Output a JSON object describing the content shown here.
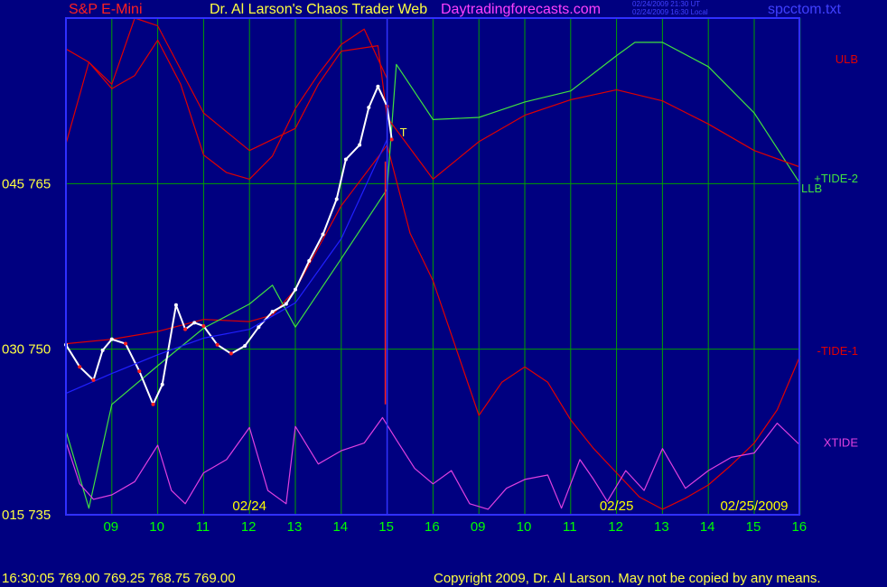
{
  "header": {
    "symbol": "S&P E-Mini",
    "title": "Dr. Al Larson's Chaos Trader Web",
    "site": "Daytradingforecasts.com",
    "ut_time": "02/24/2009 21:30 UT",
    "local_time": "02/24/2009 16:30 Local",
    "file": "spcctom.txt"
  },
  "footer": {
    "quote": "16:30:05  769.00 769.25 768.75 769.00",
    "copyright": "Copyright 2009, Dr. Al Larson. May not be copied by any means."
  },
  "colors": {
    "background": "#000080",
    "grid": "#00a000",
    "frame": "#3030ff",
    "price": "#ffffff",
    "price_down": "#ff2020",
    "ulb_llb": "#e00000",
    "tide2": "#40e040",
    "tide1": "#e00000",
    "xtide": "#e040e0",
    "blue_avg": "#2020ff",
    "now_line": "#ff2020",
    "hour_label": "#00ff00",
    "date_label": "#ffff00"
  },
  "chart_data": {
    "type": "line",
    "y_axis_labels": [
      {
        "text": "045  765",
        "value": 765
      },
      {
        "text": "030  750",
        "value": 750
      },
      {
        "text": "015  735",
        "value": 735
      }
    ],
    "ylim": [
      735,
      780
    ],
    "hour_ticks": [
      "09",
      "10",
      "11",
      "12",
      "13",
      "14",
      "15",
      "16",
      "09",
      "10",
      "11",
      "12",
      "13",
      "14",
      "15",
      "16"
    ],
    "date_labels": [
      {
        "text": "02/24",
        "hour_index": 4
      },
      {
        "text": "02/25",
        "hour_index": 12
      },
      {
        "text": "02/25/2009",
        "hour_index": 15
      }
    ],
    "now_hour_index": 7,
    "marker_label": "T",
    "series": [
      {
        "name": "ULB",
        "color_key": "ulb_llb",
        "points": [
          [
            0,
            777.2
          ],
          [
            0.5,
            776.0
          ],
          [
            1,
            773.6
          ],
          [
            1.5,
            774.8
          ],
          [
            2,
            778.0
          ],
          [
            2.5,
            774.0
          ],
          [
            3,
            767.6
          ],
          [
            3.5,
            766.0
          ],
          [
            4,
            765.4
          ],
          [
            4.5,
            767.5
          ],
          [
            5,
            771.8
          ],
          [
            5.5,
            774.9
          ],
          [
            6,
            777.6
          ],
          [
            6.5,
            779.0
          ],
          [
            7,
            774.5
          ]
        ]
      },
      {
        "name": "LLB",
        "color_key": "ulb_llb",
        "points": [
          [
            0,
            750.5
          ],
          [
            1,
            750.9
          ],
          [
            2,
            751.6
          ],
          [
            3,
            752.7
          ],
          [
            4,
            752.5
          ],
          [
            4.5,
            753.1
          ],
          [
            5,
            755.4
          ],
          [
            6,
            763.0
          ],
          [
            7,
            768.5
          ],
          [
            7.5,
            760.5
          ],
          [
            8,
            756.2
          ],
          [
            9,
            744.0
          ],
          [
            9.5,
            747.0
          ],
          [
            10,
            748.4
          ],
          [
            10.5,
            747.0
          ],
          [
            11,
            743.6
          ],
          [
            11.5,
            741.0
          ],
          [
            12,
            738.8
          ],
          [
            12.5,
            736.6
          ],
          [
            13,
            735.5
          ],
          [
            13.5,
            736.5
          ],
          [
            14,
            737.7
          ],
          [
            14.5,
            739.5
          ],
          [
            15,
            741.5
          ],
          [
            15.5,
            744.5
          ],
          [
            16,
            749.4
          ]
        ]
      },
      {
        "name": "+TIDE-2",
        "color_key": "tide2",
        "points": [
          [
            0,
            742.6
          ],
          [
            0.5,
            735.6
          ],
          [
            1,
            745.0
          ],
          [
            2,
            748.5
          ],
          [
            3,
            751.9
          ],
          [
            4,
            754.1
          ],
          [
            4.5,
            755.8
          ],
          [
            5,
            752.0
          ],
          [
            6,
            758.2
          ],
          [
            7,
            764.5
          ],
          [
            7.2,
            775.8
          ],
          [
            8,
            770.8
          ],
          [
            9,
            771.0
          ],
          [
            10,
            772.4
          ],
          [
            11,
            773.4
          ],
          [
            12,
            776.6
          ],
          [
            12.4,
            777.8
          ],
          [
            13,
            777.8
          ],
          [
            14,
            775.6
          ],
          [
            15,
            771.4
          ],
          [
            16,
            765.0
          ]
        ]
      },
      {
        "name": "-TIDE-1",
        "color_key": "tide1",
        "points": [
          [
            0,
            768.6
          ],
          [
            0.5,
            776.0
          ],
          [
            1,
            774.0
          ],
          [
            1.5,
            780.0
          ],
          [
            2,
            779.3
          ],
          [
            3,
            771.4
          ],
          [
            4,
            768.0
          ],
          [
            5,
            770.0
          ],
          [
            5.5,
            774.0
          ],
          [
            6,
            777.0
          ],
          [
            6.8,
            777.5
          ],
          [
            7,
            771.0
          ],
          [
            8,
            765.4
          ],
          [
            9,
            768.8
          ],
          [
            10,
            771.2
          ],
          [
            11,
            772.6
          ],
          [
            12,
            773.5
          ],
          [
            13,
            772.5
          ],
          [
            14,
            770.4
          ],
          [
            15,
            768.0
          ],
          [
            16,
            766.5
          ]
        ]
      },
      {
        "name": "XTIDE",
        "color_key": "xtide",
        "points": [
          [
            0,
            741.6
          ],
          [
            0.3,
            737.8
          ],
          [
            0.6,
            736.4
          ],
          [
            1,
            736.8
          ],
          [
            1.5,
            738.0
          ],
          [
            2,
            741.3
          ],
          [
            2.3,
            737.2
          ],
          [
            2.6,
            736.0
          ],
          [
            3,
            738.8
          ],
          [
            3.5,
            740.0
          ],
          [
            4,
            742.9
          ],
          [
            4.4,
            737.2
          ],
          [
            4.8,
            736.0
          ],
          [
            5,
            743.0
          ],
          [
            5.5,
            739.6
          ],
          [
            6,
            740.8
          ],
          [
            6.5,
            741.5
          ],
          [
            6.9,
            743.8
          ],
          [
            7.2,
            741.8
          ],
          [
            7.6,
            739.2
          ],
          [
            8,
            737.8
          ],
          [
            8.4,
            739.0
          ],
          [
            8.8,
            736.0
          ],
          [
            9.2,
            735.5
          ],
          [
            9.6,
            737.4
          ],
          [
            10,
            738.2
          ],
          [
            10.5,
            738.6
          ],
          [
            10.8,
            735.6
          ],
          [
            11.2,
            740.0
          ],
          [
            11.5,
            738.2
          ],
          [
            11.8,
            736.2
          ],
          [
            12.2,
            739.0
          ],
          [
            12.6,
            737.2
          ],
          [
            13,
            741.0
          ],
          [
            13.5,
            737.4
          ],
          [
            14,
            739.0
          ],
          [
            14.5,
            740.2
          ],
          [
            15,
            740.6
          ],
          [
            15.5,
            743.3
          ],
          [
            16,
            741.3
          ]
        ]
      },
      {
        "name": "Price",
        "color_key": "price",
        "points": [
          [
            0,
            750.4
          ],
          [
            0.3,
            748.4
          ],
          [
            0.6,
            747.2
          ],
          [
            0.8,
            749.9
          ],
          [
            1,
            750.9
          ],
          [
            1.3,
            750.5
          ],
          [
            1.6,
            748.0
          ],
          [
            1.9,
            745.0
          ],
          [
            2.1,
            746.8
          ],
          [
            2.4,
            754.0
          ],
          [
            2.6,
            751.8
          ],
          [
            2.8,
            752.4
          ],
          [
            3,
            752.1
          ],
          [
            3.3,
            750.4
          ],
          [
            3.6,
            749.6
          ],
          [
            3.9,
            750.3
          ],
          [
            4.2,
            752.0
          ],
          [
            4.5,
            753.4
          ],
          [
            4.8,
            754.1
          ],
          [
            5,
            755.4
          ],
          [
            5.3,
            758.0
          ],
          [
            5.6,
            760.4
          ],
          [
            5.9,
            763.6
          ],
          [
            6.1,
            767.2
          ],
          [
            6.4,
            768.5
          ],
          [
            6.6,
            771.9
          ],
          [
            6.8,
            773.8
          ],
          [
            7,
            772.0
          ],
          [
            7.1,
            769.0
          ]
        ]
      },
      {
        "name": "Average",
        "color_key": "blue_avg",
        "points": [
          [
            0,
            746.0
          ],
          [
            1,
            747.8
          ],
          [
            2,
            749.5
          ],
          [
            3,
            751.0
          ],
          [
            4,
            751.8
          ],
          [
            5,
            754.2
          ],
          [
            6,
            760.0
          ],
          [
            7,
            769.0
          ]
        ]
      }
    ],
    "right_labels": [
      {
        "text": "ULB",
        "color_key": "ulb_llb",
        "value": 776.3
      },
      {
        "text": "+TIDE-2",
        "color_key": "tide2",
        "value": 765.5
      },
      {
        "text": "LLB",
        "color_key": "tide2",
        "value": 764.6
      },
      {
        "text": "-TIDE-1",
        "color_key": "tide1",
        "value": 749.9
      },
      {
        "text": "XTIDE",
        "color_key": "xtide",
        "value": 741.6
      }
    ]
  }
}
